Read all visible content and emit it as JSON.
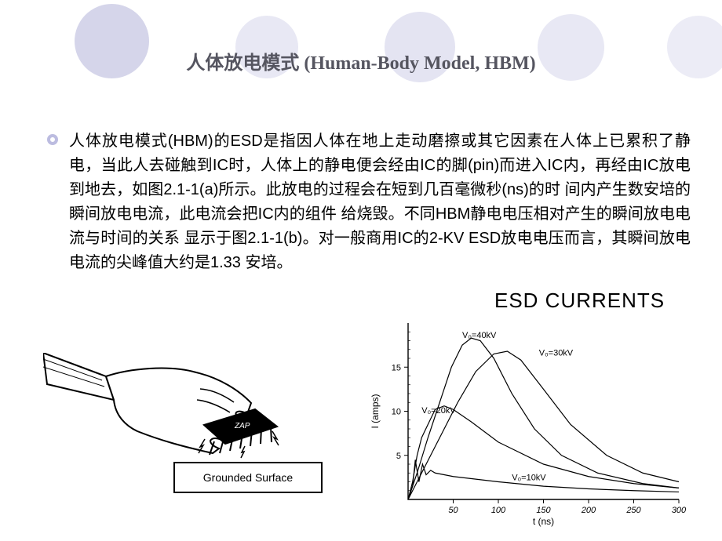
{
  "title": "人体放电模式 (Human-Body Model, HBM)",
  "paragraph": "人体放电模式(HBM)的ESD是指因人体在地上走动磨擦或其它因素在人体上已累积了静电，当此人去碰触到IC时，人体上的静电便会经由IC的脚(pin)而进入IC内，再经由IC放电到地去，如图2.1-1(a)所示。此放电的过程会在短到几百毫微秒(ns)的时 间内产生数安培的瞬间放电电流，此电流会把IC内的组件 给烧毁。不同HBM静电电压相对产生的瞬间放电电流与时间的关系 显示于图2.1-1(b)。对一般商用IC的2-KV ESD放电电压而言，其瞬间放电电流的尖峰值大约是1.33 安培。",
  "figA": {
    "surface_label": "Grounded Surface"
  },
  "figB": {
    "title": "ESD CURRENTS",
    "xlabel": "t (ns)",
    "ylabel": "I (amps)",
    "xlim": [
      0,
      300
    ],
    "ylim": [
      0,
      20
    ],
    "xticks": [
      50,
      100,
      150,
      200,
      250,
      300
    ],
    "yticks": [
      5,
      10,
      15
    ],
    "plot_bg": "#ffffff",
    "axis_color": "#000000",
    "line_color": "#000000",
    "line_width": 1.2,
    "font_size_axis": 11,
    "font_size_labels": 12,
    "curves": [
      {
        "label": "V₀=10kV",
        "label_at": [
          115,
          2.2
        ],
        "pts": [
          [
            0,
            0
          ],
          [
            5,
            1.5
          ],
          [
            8,
            4.5
          ],
          [
            12,
            2
          ],
          [
            16,
            4
          ],
          [
            20,
            2.8
          ],
          [
            25,
            3.3
          ],
          [
            30,
            3.0
          ],
          [
            50,
            2.6
          ],
          [
            100,
            2.0
          ],
          [
            150,
            1.5
          ],
          [
            200,
            1.2
          ],
          [
            250,
            1.0
          ],
          [
            300,
            0.85
          ]
        ]
      },
      {
        "label": "V₀=20kV",
        "label_at": [
          15,
          9.8
        ],
        "pts": [
          [
            0,
            0
          ],
          [
            5,
            2
          ],
          [
            10,
            5
          ],
          [
            15,
            7
          ],
          [
            22,
            8.5
          ],
          [
            30,
            10.2
          ],
          [
            40,
            10.6
          ],
          [
            50,
            10.2
          ],
          [
            70,
            8.8
          ],
          [
            100,
            6.5
          ],
          [
            150,
            4.0
          ],
          [
            200,
            2.6
          ],
          [
            250,
            1.8
          ],
          [
            300,
            1.3
          ]
        ]
      },
      {
        "label": "V₀=30kV",
        "label_at": [
          145,
          16.3
        ],
        "pts": [
          [
            0,
            0
          ],
          [
            10,
            2
          ],
          [
            20,
            4
          ],
          [
            35,
            7
          ],
          [
            55,
            11
          ],
          [
            75,
            14.5
          ],
          [
            95,
            16.5
          ],
          [
            110,
            16.8
          ],
          [
            125,
            15.8
          ],
          [
            150,
            12.5
          ],
          [
            180,
            8.5
          ],
          [
            220,
            5.0
          ],
          [
            260,
            3.0
          ],
          [
            300,
            2.0
          ]
        ]
      },
      {
        "label": "V₀=40kV",
        "label_at": [
          60,
          18.3
        ],
        "pts": [
          [
            0,
            0
          ],
          [
            10,
            3
          ],
          [
            22,
            7
          ],
          [
            35,
            11
          ],
          [
            48,
            15
          ],
          [
            60,
            17.5
          ],
          [
            70,
            18.3
          ],
          [
            80,
            18.0
          ],
          [
            95,
            16.0
          ],
          [
            115,
            12.0
          ],
          [
            140,
            8.0
          ],
          [
            170,
            5.0
          ],
          [
            210,
            3.0
          ],
          [
            260,
            1.8
          ],
          [
            300,
            1.3
          ]
        ]
      }
    ]
  }
}
